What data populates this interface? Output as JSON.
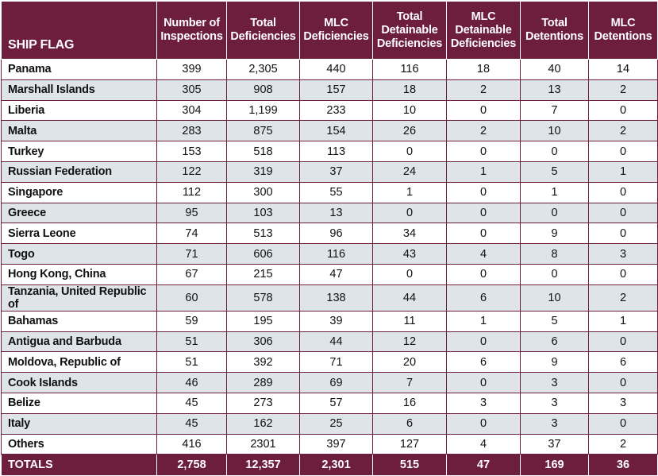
{
  "header": {
    "ship_flag": "SHIP FLAG",
    "columns": [
      [
        "Number of",
        "Inspections"
      ],
      [
        "Total",
        "Deficiencies"
      ],
      [
        "MLC",
        "Deficiencies"
      ],
      [
        "Total",
        "Detainable",
        "Deficiencies"
      ],
      [
        "MLC",
        "Detainable",
        "Deficiencies"
      ],
      [
        "Total",
        "Detentions"
      ],
      [
        "MLC",
        "Detentions"
      ]
    ]
  },
  "rows": [
    {
      "flag": "Panama",
      "values": [
        "399",
        "2,305",
        "440",
        "116",
        "18",
        "40",
        "14"
      ]
    },
    {
      "flag": "Marshall Islands",
      "values": [
        "305",
        "908",
        "157",
        "18",
        "2",
        "13",
        "2"
      ]
    },
    {
      "flag": "Liberia",
      "values": [
        "304",
        "1,199",
        "233",
        "10",
        "0",
        "7",
        "0"
      ]
    },
    {
      "flag": "Malta",
      "values": [
        "283",
        "875",
        "154",
        "26",
        "2",
        "10",
        "2"
      ]
    },
    {
      "flag": "Turkey",
      "values": [
        "153",
        "518",
        "113",
        "0",
        "0",
        "0",
        "0"
      ]
    },
    {
      "flag": "Russian Federation",
      "values": [
        "122",
        "319",
        "37",
        "24",
        "1",
        "5",
        "1"
      ]
    },
    {
      "flag": "Singapore",
      "values": [
        "112",
        "300",
        "55",
        "1",
        "0",
        "1",
        "0"
      ]
    },
    {
      "flag": "Greece",
      "values": [
        "95",
        "103",
        "13",
        "0",
        "0",
        "0",
        "0"
      ]
    },
    {
      "flag": "Sierra Leone",
      "values": [
        "74",
        "513",
        "96",
        "34",
        "0",
        "9",
        "0"
      ]
    },
    {
      "flag": "Togo",
      "values": [
        "71",
        "606",
        "116",
        "43",
        "4",
        "8",
        "3"
      ]
    },
    {
      "flag": "Hong Kong, China",
      "values": [
        "67",
        "215",
        "47",
        "0",
        "0",
        "0",
        "0"
      ]
    },
    {
      "flag": "Tanzania, United Republic of",
      "values": [
        "60",
        "578",
        "138",
        "44",
        "6",
        "10",
        "2"
      ]
    },
    {
      "flag": "Bahamas",
      "values": [
        "59",
        "195",
        "39",
        "11",
        "1",
        "5",
        "1"
      ]
    },
    {
      "flag": "Antigua and Barbuda",
      "values": [
        "51",
        "306",
        "44",
        "12",
        "0",
        "6",
        "0"
      ]
    },
    {
      "flag": "Moldova, Republic of",
      "values": [
        "51",
        "392",
        "71",
        "20",
        "6",
        "9",
        "6"
      ]
    },
    {
      "flag": "Cook Islands",
      "values": [
        "46",
        "289",
        "69",
        "7",
        "0",
        "3",
        "0"
      ]
    },
    {
      "flag": "Belize",
      "values": [
        "45",
        "273",
        "57",
        "16",
        "3",
        "3",
        "3"
      ]
    },
    {
      "flag": "Italy",
      "values": [
        "45",
        "162",
        "25",
        "6",
        "0",
        "3",
        "0"
      ]
    },
    {
      "flag": "Others",
      "values": [
        "416",
        "2301",
        "397",
        "127",
        "4",
        "37",
        "2"
      ]
    }
  ],
  "totals": {
    "label": "TOTALS",
    "values": [
      "2,758",
      "12,357",
      "2,301",
      "515",
      "47",
      "169",
      "36"
    ]
  }
}
